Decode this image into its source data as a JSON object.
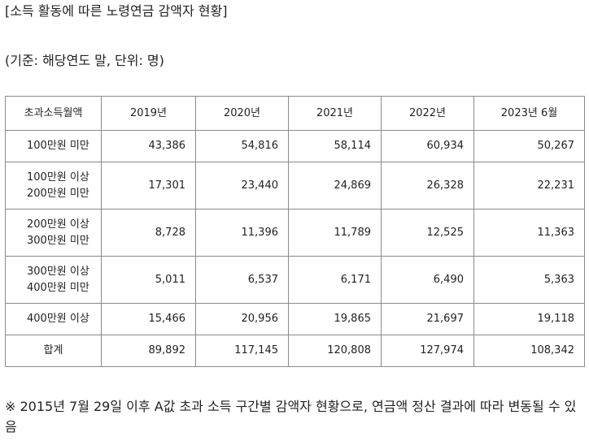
{
  "title": "[소득 활동에 따른 노령연금 감액자 현황]",
  "unit_note": "(기준: 해당연도 말, 단위: 명)",
  "table": {
    "headers": [
      "초과소득월액",
      "2019년",
      "2020년",
      "2021년",
      "2022년",
      "2023년 6월"
    ],
    "rows": [
      {
        "label": "100만원 미만",
        "values": [
          "43,386",
          "54,816",
          "58,114",
          "60,934",
          "50,267"
        ]
      },
      {
        "label": "100만원 이상\n200만원 미만",
        "values": [
          "17,301",
          "23,440",
          "24,869",
          "26,328",
          "22,231"
        ]
      },
      {
        "label": "200만원 이상\n300만원 미만",
        "values": [
          "8,728",
          "11,396",
          "11,789",
          "12,525",
          "11,363"
        ]
      },
      {
        "label": "300만원 이상\n400만원 미만",
        "values": [
          "5,011",
          "6,537",
          "6,171",
          "6,490",
          "5,363"
        ]
      },
      {
        "label": "400만원 이상",
        "values": [
          "15,466",
          "20,956",
          "19,865",
          "21,697",
          "19,118"
        ]
      },
      {
        "label": "합계",
        "values": [
          "89,892",
          "117,145",
          "120,808",
          "127,974",
          "108,342"
        ]
      }
    ]
  },
  "footnote": "※ 2015년 7월 29일 이후 A값 초과 소득 구간별 감액자 현황으로, 연금액 정산 결과에 따라 변동될 수 있음"
}
